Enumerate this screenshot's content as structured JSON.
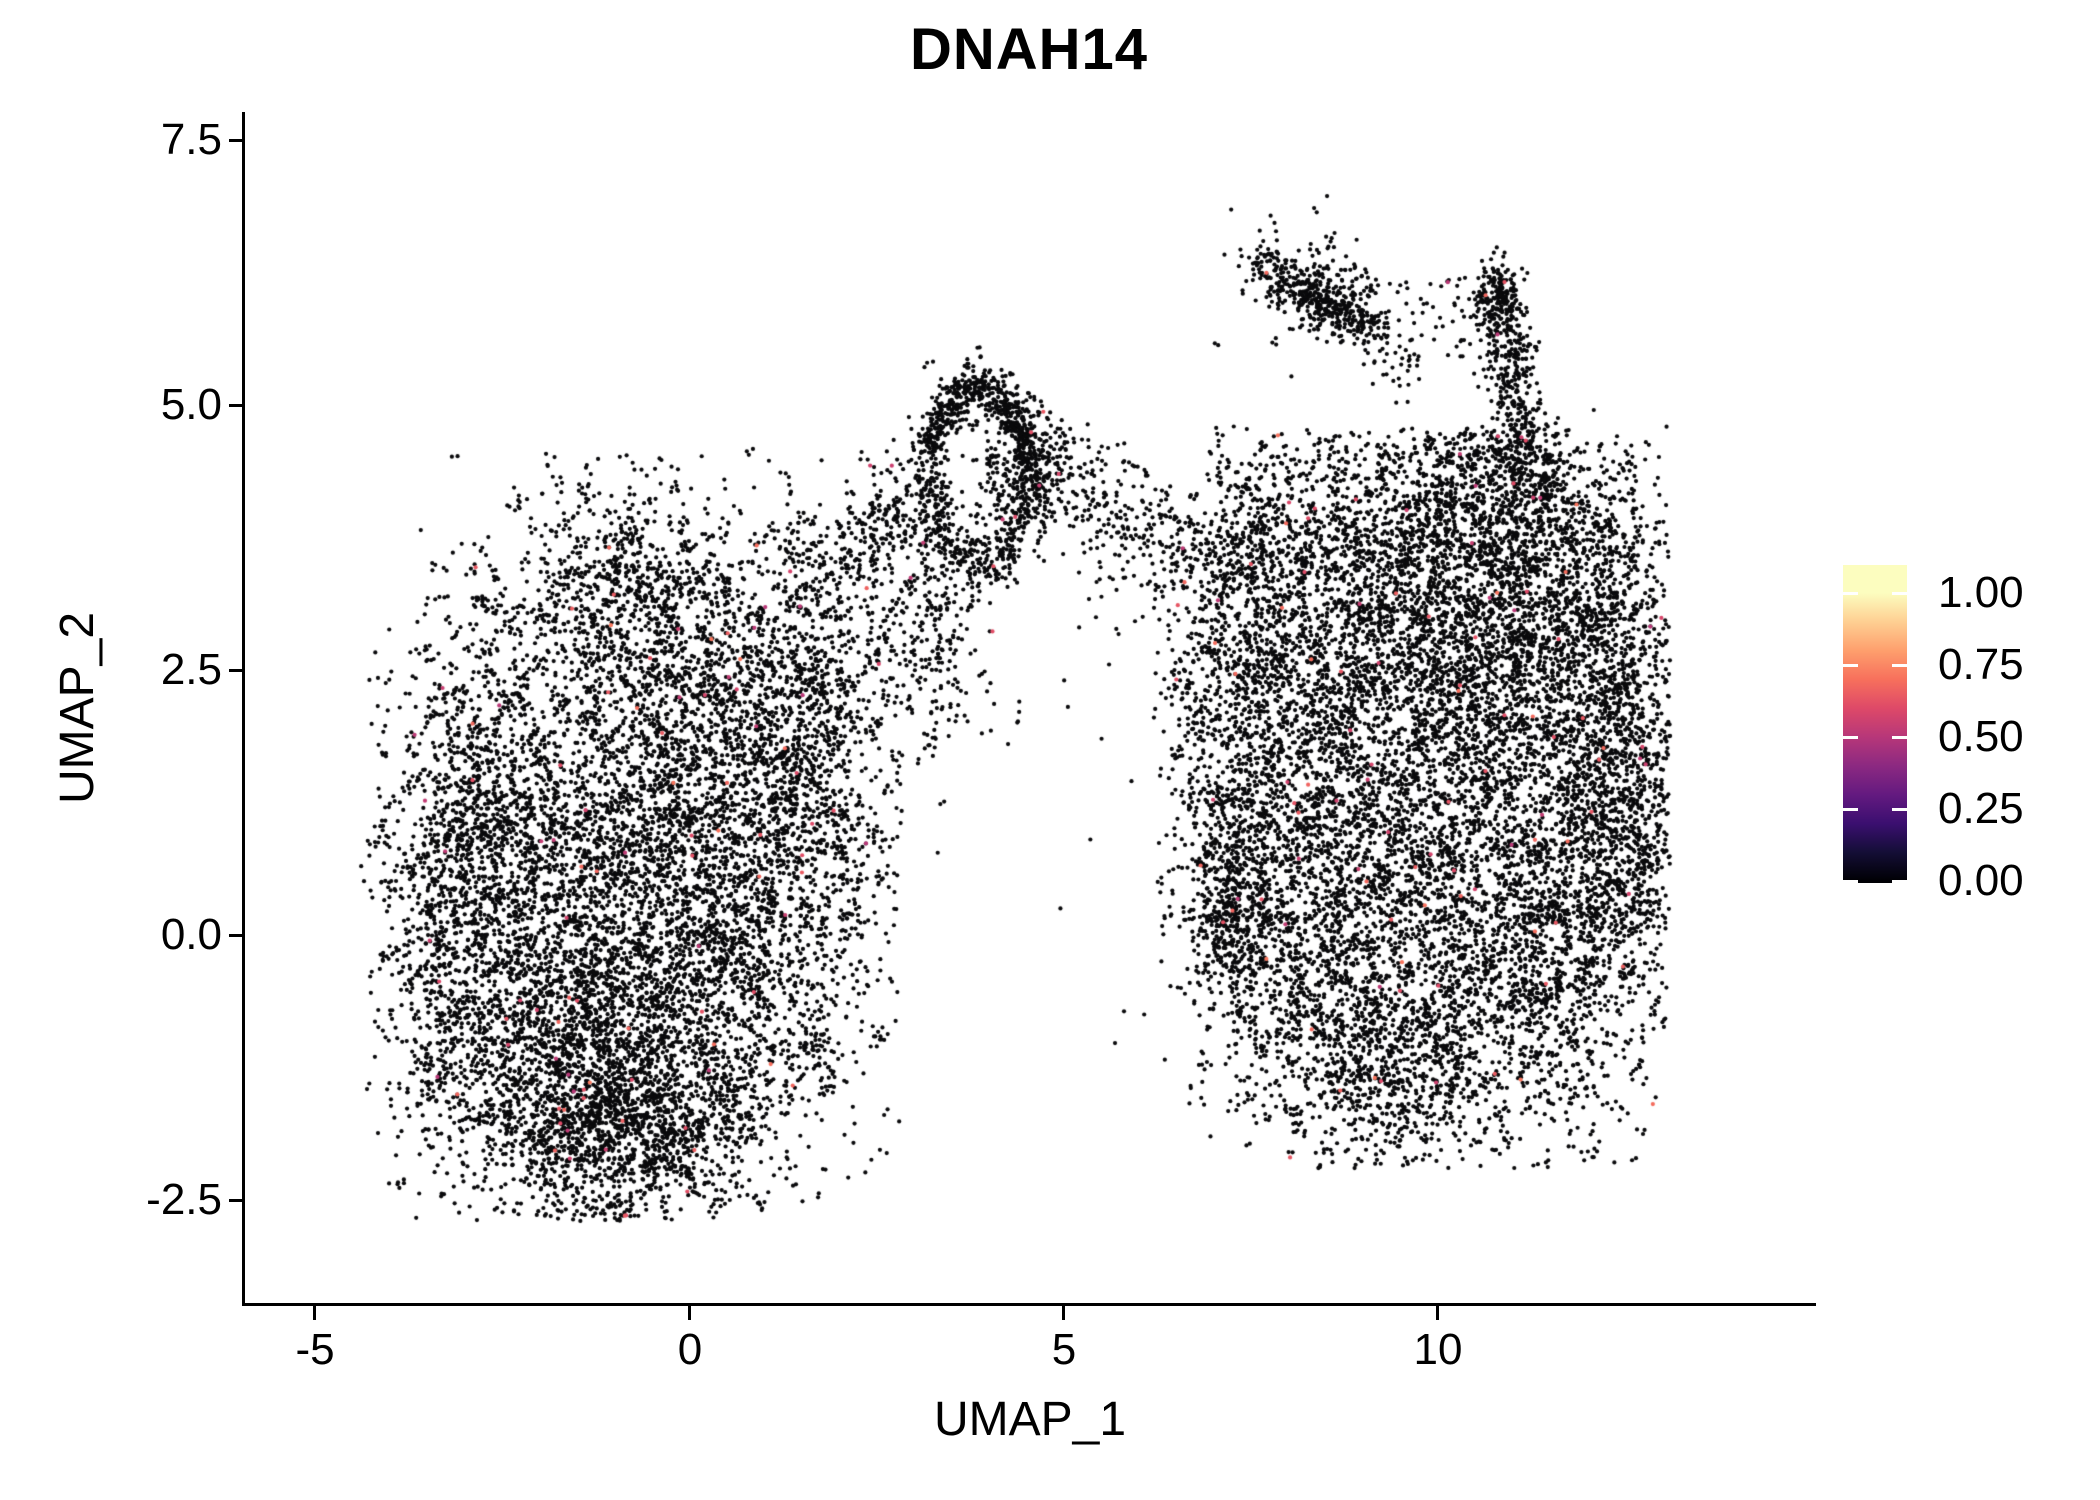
{
  "title": "DNAH14",
  "axes": {
    "x_label": "UMAP_1",
    "y_label": "UMAP_2",
    "x_ticks": [
      {
        "label": "-5"
      },
      {
        "label": "0"
      },
      {
        "label": "5"
      },
      {
        "label": "10"
      }
    ],
    "y_ticks": [
      {
        "label": "7.5"
      },
      {
        "label": "5.0"
      },
      {
        "label": "2.5"
      },
      {
        "label": "0.0"
      },
      {
        "label": "-2.5"
      }
    ]
  },
  "colorbar": {
    "colormap": "magma",
    "ticks": [
      {
        "label": "1.00",
        "value": 1.0
      },
      {
        "label": "0.75",
        "value": 0.75
      },
      {
        "label": "0.50",
        "value": 0.5
      },
      {
        "label": "0.25",
        "value": 0.25
      },
      {
        "label": "0.00",
        "value": 0.0
      }
    ],
    "stops": [
      [
        0,
        "#000004"
      ],
      [
        0.1,
        "#140e36"
      ],
      [
        0.2,
        "#3b0f70"
      ],
      [
        0.3,
        "#641a80"
      ],
      [
        0.4,
        "#8c2981"
      ],
      [
        0.5,
        "#b73779"
      ],
      [
        0.6,
        "#de4968"
      ],
      [
        0.7,
        "#f7705c"
      ],
      [
        0.8,
        "#fe9f6d"
      ],
      [
        0.9,
        "#fecf92"
      ],
      [
        1,
        "#fcfdbf"
      ]
    ]
  },
  "chart_data": {
    "type": "scatter",
    "title": "DNAH14",
    "xlabel": "UMAP_1",
    "ylabel": "UMAP_2",
    "xlim": [
      -5.95,
      15.01
    ],
    "ylim": [
      -3.48,
      7.76
    ],
    "x_ticks": [
      -5,
      0,
      5,
      10
    ],
    "y_ticks": [
      7.5,
      5.0,
      2.5,
      0.0,
      -2.5
    ],
    "legend_ticks": [
      1.0,
      0.75,
      0.5,
      0.25,
      0.0
    ],
    "grid": false,
    "point_radius_px": 2.1,
    "base_color": "#0a0a0c",
    "colored_fraction": 0.007,
    "colored_value_range": [
      0.5,
      0.72
    ],
    "seed": 7,
    "clusters": [
      {
        "name": "left-blob-core-upper",
        "type": "g",
        "cx": -1.9,
        "cy": 0.7,
        "sx": 1.05,
        "sy": 1.25,
        "n": 1900,
        "clip": [
          -4.4,
          2.8,
          -2.7,
          4.6
        ]
      },
      {
        "name": "left-blob-core-lower",
        "type": "g",
        "cx": -0.5,
        "cy": -0.5,
        "sx": 1.15,
        "sy": 1.05,
        "n": 2100,
        "clip": [
          -4.4,
          2.8,
          -2.7,
          4.6
        ]
      },
      {
        "name": "left-blob-bottom",
        "type": "g",
        "cx": -1.5,
        "cy": -1.55,
        "sx": 0.95,
        "sy": 0.6,
        "n": 1400,
        "clip": [
          -4.4,
          2.8,
          -2.7,
          4.6
        ]
      },
      {
        "name": "left-blob-bottom-right",
        "type": "g",
        "cx": -0.5,
        "cy": -1.9,
        "sx": 0.7,
        "sy": 0.4,
        "n": 500,
        "clip": [
          -4.4,
          2.8,
          -2.7,
          4.6
        ]
      },
      {
        "name": "left-blob-upper-mid",
        "type": "g",
        "cx": 0.3,
        "cy": 1.7,
        "sx": 1.0,
        "sy": 0.95,
        "n": 1500,
        "clip": [
          -4.4,
          2.8,
          -2.7,
          4.6
        ]
      },
      {
        "name": "left-blob-west",
        "type": "g",
        "cx": -2.8,
        "cy": 1.2,
        "sx": 0.6,
        "sy": 0.95,
        "n": 800,
        "clip": [
          -4.4,
          2.8,
          -2.7,
          4.6
        ]
      },
      {
        "name": "left-blob-west-low",
        "type": "g",
        "cx": -3.25,
        "cy": -0.5,
        "sx": 0.5,
        "sy": 0.85,
        "n": 500,
        "clip": [
          -4.4,
          2.8,
          -2.7,
          4.6
        ]
      },
      {
        "name": "left-blob-top-peak",
        "type": "g",
        "cx": -0.85,
        "cy": 3.2,
        "sx": 0.8,
        "sy": 0.62,
        "n": 850,
        "clip": [
          -4.4,
          2.8,
          -2.7,
          4.55
        ]
      },
      {
        "name": "left-blob-right-shoulder",
        "type": "g",
        "cx": 1.55,
        "cy": 2.5,
        "sx": 0.7,
        "sy": 0.95,
        "n": 850,
        "clip": [
          -4.4,
          2.9,
          -2.7,
          4.6
        ]
      },
      {
        "name": "left-blob-right",
        "type": "g",
        "cx": 1.1,
        "cy": 0.2,
        "sx": 0.85,
        "sy": 1.1,
        "n": 1100,
        "clip": [
          -4.4,
          2.8,
          -2.7,
          4.6
        ]
      },
      {
        "name": "loop-ring",
        "type": "ring",
        "cx": 3.85,
        "cy": 4.3,
        "rx": 0.65,
        "ry": 0.85,
        "rsd": 0.15,
        "a0": 0,
        "a1": 6.2832,
        "n": 600
      },
      {
        "name": "loop-ring-top-arc",
        "type": "ring",
        "cx": 3.85,
        "cy": 4.3,
        "rx": 0.68,
        "ry": 0.88,
        "rsd": 0.11,
        "a0": 0.35,
        "a1": 2.79,
        "n": 280
      },
      {
        "name": "loop-knot",
        "type": "g",
        "cx": 4.55,
        "cy": 4.35,
        "sx": 0.3,
        "sy": 0.35,
        "n": 380
      },
      {
        "name": "loop-stem",
        "type": "g",
        "cx": 3.2,
        "cy": 3.1,
        "sx": 0.38,
        "sy": 0.75,
        "n": 380
      },
      {
        "name": "bridge-left",
        "type": "seg",
        "x1": 2.1,
        "y1": 3.4,
        "x2": 3.1,
        "y2": 4.35,
        "sd": 0.22,
        "n": 200
      },
      {
        "name": "bridge-right",
        "type": "seg",
        "x1": 4.95,
        "y1": 4.45,
        "x2": 6.9,
        "y2": 3.55,
        "sd": 0.26,
        "n": 240
      },
      {
        "name": "bridge-right-sparse",
        "type": "seg",
        "x1": 5.3,
        "y1": 3.9,
        "x2": 6.6,
        "y2": 2.9,
        "sd": 0.3,
        "n": 60
      },
      {
        "name": "hook-filament",
        "type": "seg",
        "x1": 7.55,
        "y1": 6.3,
        "x2": 9.15,
        "y2": 5.75,
        "sd": 0.14,
        "n": 300
      },
      {
        "name": "hook-filament-knot",
        "type": "g",
        "cx": 8.5,
        "cy": 6.0,
        "sx": 0.22,
        "sy": 0.16,
        "n": 150
      },
      {
        "name": "hook-filament-tail",
        "type": "seg",
        "x1": 9.0,
        "y1": 5.8,
        "x2": 9.6,
        "y2": 5.25,
        "sd": 0.18,
        "n": 60
      },
      {
        "name": "hook-filament-halo",
        "type": "g",
        "cx": 8.3,
        "cy": 6.1,
        "sx": 0.55,
        "sy": 0.35,
        "n": 90
      },
      {
        "name": "hook-mid-sparse",
        "type": "rect",
        "x0": 9.3,
        "x1": 10.6,
        "y0": 5.4,
        "y1": 6.2,
        "n": 50
      },
      {
        "name": "hook-column",
        "type": "seg",
        "x1": 10.75,
        "y1": 6.15,
        "x2": 11.2,
        "y2": 4.5,
        "sd": 0.17,
        "n": 420
      },
      {
        "name": "hook-column-head",
        "type": "g",
        "cx": 10.78,
        "cy": 6.05,
        "sx": 0.18,
        "sy": 0.14,
        "n": 110
      },
      {
        "name": "hook-column-base",
        "type": "g",
        "cx": 11.2,
        "cy": 4.35,
        "sx": 0.38,
        "sy": 0.3,
        "n": 180
      },
      {
        "name": "right-blob-upper-left",
        "type": "g",
        "cx": 9.4,
        "cy": 2.9,
        "sx": 1.15,
        "sy": 0.95,
        "n": 2100,
        "clip": [
          6.2,
          13.1,
          -2.2,
          4.8
        ]
      },
      {
        "name": "right-blob-upper-right",
        "type": "g",
        "cx": 11.2,
        "cy": 2.7,
        "sx": 1.0,
        "sy": 1.05,
        "n": 2000,
        "clip": [
          6.2,
          13.1,
          -2.2,
          4.8
        ]
      },
      {
        "name": "right-blob-mid-left",
        "type": "g",
        "cx": 8.4,
        "cy": 0.7,
        "sx": 0.95,
        "sy": 1.15,
        "n": 1700,
        "clip": [
          6.2,
          13.1,
          -2.2,
          4.8
        ]
      },
      {
        "name": "right-blob-center-low",
        "type": "g",
        "cx": 10.4,
        "cy": 0.3,
        "sx": 1.15,
        "sy": 1.15,
        "n": 2100,
        "clip": [
          6.2,
          13.1,
          -2.2,
          4.8
        ]
      },
      {
        "name": "right-blob-east-bulge",
        "type": "g",
        "cx": 12.35,
        "cy": 2.1,
        "sx": 0.5,
        "sy": 1.0,
        "n": 800,
        "clip": [
          6.2,
          13.1,
          -2.2,
          4.8
        ]
      },
      {
        "name": "right-blob-bottom",
        "type": "g",
        "cx": 9.4,
        "cy": -1.15,
        "sx": 0.95,
        "sy": 0.55,
        "n": 900,
        "clip": [
          6.2,
          13.1,
          -2.2,
          4.8
        ]
      },
      {
        "name": "right-blob-low-right",
        "type": "g",
        "cx": 11.7,
        "cy": -0.1,
        "sx": 0.65,
        "sy": 0.85,
        "n": 750,
        "clip": [
          6.2,
          13.1,
          -2.2,
          4.8
        ]
      },
      {
        "name": "right-blob-top-fringe",
        "type": "g",
        "cx": 10.2,
        "cy": 4.0,
        "sx": 1.3,
        "sy": 0.5,
        "n": 950,
        "clip": [
          6.2,
          13.1,
          -2.2,
          4.75
        ]
      },
      {
        "name": "right-blob-left-arm",
        "type": "g",
        "cx": 7.5,
        "cy": 3.2,
        "sx": 0.4,
        "sy": 0.85,
        "n": 500,
        "clip": [
          6.2,
          13.1,
          -2.2,
          4.8
        ]
      },
      {
        "name": "right-blob-east-low",
        "type": "g",
        "cx": 12.6,
        "cy": 0.9,
        "sx": 0.4,
        "sy": 0.7,
        "n": 400,
        "clip": [
          6.2,
          13.1,
          -2.2,
          4.8
        ]
      },
      {
        "name": "right-blob-west-edge",
        "type": "g",
        "cx": 7.3,
        "cy": 1.8,
        "sx": 0.55,
        "sy": 1.2,
        "n": 700,
        "clip": [
          6.2,
          13.1,
          -2.2,
          4.8
        ]
      },
      {
        "name": "right-blob-west-knot",
        "type": "g",
        "cx": 7.25,
        "cy": 0.2,
        "sx": 0.35,
        "sy": 0.5,
        "n": 450,
        "clip": [
          6.2,
          13.1,
          -2.2,
          4.8
        ]
      }
    ],
    "singles": [
      [
        5.2,
        2.9
      ],
      [
        5.6,
        2.55
      ],
      [
        5.05,
        2.15
      ],
      [
        5.5,
        1.85
      ],
      [
        6.2,
        2.05
      ],
      [
        5.9,
        1.45
      ],
      [
        5.35,
        0.9
      ],
      [
        6.4,
        0.6
      ],
      [
        5.8,
        -0.72
      ],
      [
        6.07,
        -0.75
      ],
      [
        5.68,
        -1.02
      ],
      [
        6.3,
        -0.25
      ],
      [
        4.95,
        0.25
      ],
      [
        6.6,
        1.25
      ],
      [
        6.05,
        3.0
      ],
      [
        6.55,
        2.4
      ],
      [
        4.4,
        2.2
      ],
      [
        5.0,
        2.4
      ],
      [
        3.9,
        1.9
      ],
      [
        4.25,
        1.8
      ],
      [
        -3.88,
        1.25
      ]
    ]
  }
}
